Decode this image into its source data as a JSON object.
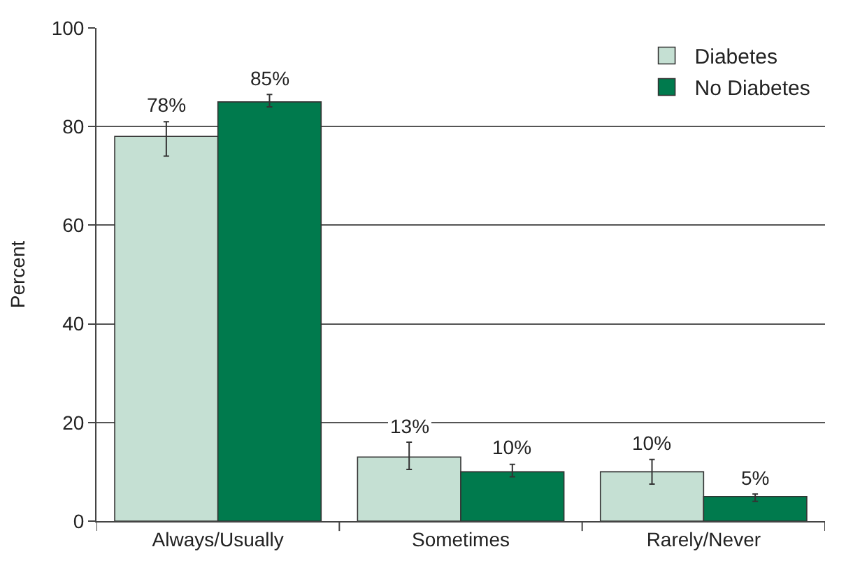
{
  "chart_data": {
    "type": "bar",
    "ylabel": "Percent",
    "categories": [
      "Always/Usually",
      "Sometimes",
      "Rarely/Never"
    ],
    "series": [
      {
        "name": "Diabetes",
        "color": "#c5e0d3",
        "values": [
          78,
          13,
          10
        ],
        "errors": [
          [
            74,
            81
          ],
          [
            10.5,
            16
          ],
          [
            7.5,
            12.5
          ]
        ],
        "value_labels": [
          "78%",
          "13%",
          "10%"
        ]
      },
      {
        "name": "No Diabetes",
        "color": "#007a4d",
        "values": [
          85,
          10,
          5
        ],
        "errors": [
          [
            84,
            86.5
          ],
          [
            9,
            11.5
          ],
          [
            4,
            5.5
          ]
        ],
        "value_labels": [
          "85%",
          "10%",
          "5%"
        ]
      }
    ],
    "ylim": [
      0,
      100
    ],
    "yticks": [
      0,
      20,
      40,
      60,
      80,
      100
    ],
    "grid": "y",
    "legend": "top right"
  }
}
